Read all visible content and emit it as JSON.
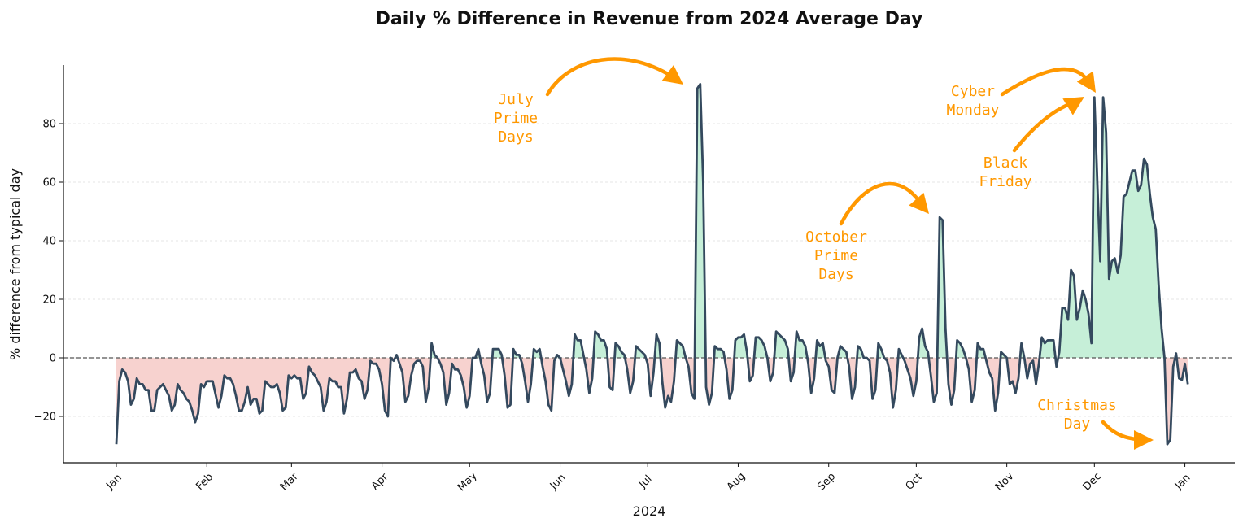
{
  "chart_data": {
    "type": "line",
    "title": "Daily % Difference in Revenue from 2024 Average Day",
    "xlabel": "2024",
    "ylabel": "% difference from typical day",
    "ylim": [
      -35,
      100
    ],
    "yticks": [
      -20,
      0,
      20,
      40,
      60,
      80
    ],
    "ytick_labels": [
      "−20",
      "0",
      "20",
      "40",
      "60",
      "80"
    ],
    "xticks": [
      "Jan",
      "Feb",
      "Mar",
      "Apr",
      "May",
      "Jun",
      "Jul",
      "Aug",
      "Sep",
      "Oct",
      "Nov",
      "Dec",
      "Jan"
    ],
    "grid": "y-dashed",
    "baseline": 0,
    "colors": {
      "line": "#34495e",
      "positive_fill": "#c6efd8",
      "negative_fill": "#f7d2cf",
      "annotation": "#ff9800",
      "baseline": "#555555",
      "grid": "#dddddd"
    },
    "anchors": [
      [
        0,
        -29.5
      ],
      [
        1,
        -8
      ],
      [
        2,
        -4
      ],
      [
        3,
        -5
      ],
      [
        4,
        -8
      ],
      [
        5,
        -16
      ],
      [
        6,
        -14
      ],
      [
        7,
        -7
      ],
      [
        8,
        -9
      ],
      [
        9,
        -9
      ],
      [
        10,
        -11
      ],
      [
        11,
        -11
      ],
      [
        12,
        -18
      ],
      [
        13,
        -18
      ],
      [
        14,
        -11
      ],
      [
        15,
        -10
      ],
      [
        16,
        -9
      ],
      [
        17,
        -11
      ],
      [
        18,
        -13
      ],
      [
        19,
        -18
      ],
      [
        20,
        -16
      ],
      [
        21,
        -9
      ],
      [
        22,
        -11
      ],
      [
        23,
        -12
      ],
      [
        24,
        -14
      ],
      [
        25,
        -15
      ],
      [
        26,
        -18
      ],
      [
        27,
        -22
      ],
      [
        28,
        -19
      ],
      [
        29,
        -9
      ],
      [
        30,
        -10
      ],
      [
        31,
        -8
      ],
      [
        32,
        -8
      ],
      [
        33,
        -8
      ],
      [
        35,
        -17
      ],
      [
        36,
        -13
      ],
      [
        37,
        -6
      ],
      [
        38,
        -7
      ],
      [
        39,
        -7
      ],
      [
        40,
        -9
      ],
      [
        41,
        -13
      ],
      [
        42,
        -18
      ],
      [
        43,
        -18
      ],
      [
        44,
        -15
      ],
      [
        45,
        -10
      ],
      [
        46,
        -16
      ],
      [
        47,
        -14
      ],
      [
        48,
        -14
      ],
      [
        49,
        -19
      ],
      [
        50,
        -18
      ],
      [
        51,
        -8
      ],
      [
        52,
        -9
      ],
      [
        53,
        -10
      ],
      [
        54,
        -10
      ],
      [
        55,
        -9
      ],
      [
        56,
        -12
      ],
      [
        57,
        -18
      ],
      [
        58,
        -17
      ],
      [
        59,
        -6
      ],
      [
        60,
        -7
      ],
      [
        61,
        -6
      ],
      [
        62,
        -7
      ],
      [
        63,
        -7
      ],
      [
        64,
        -14
      ],
      [
        65,
        -12
      ],
      [
        66,
        -3
      ],
      [
        67,
        -5
      ],
      [
        68,
        -6
      ],
      [
        69,
        -8
      ],
      [
        70,
        -10
      ],
      [
        71,
        -18
      ],
      [
        72,
        -15
      ],
      [
        73,
        -7
      ],
      [
        74,
        -8
      ],
      [
        75,
        -8
      ],
      [
        76,
        -10
      ],
      [
        77,
        -10
      ],
      [
        78,
        -19
      ],
      [
        79,
        -14
      ],
      [
        80,
        -5
      ],
      [
        81,
        -5
      ],
      [
        82,
        -4
      ],
      [
        83,
        -7
      ],
      [
        84,
        -8
      ],
      [
        85,
        -14
      ],
      [
        86,
        -11
      ],
      [
        87,
        -1
      ],
      [
        88,
        -2
      ],
      [
        89,
        -2
      ],
      [
        90,
        -4
      ],
      [
        91,
        -9
      ],
      [
        92,
        -18
      ],
      [
        93,
        -20
      ],
      [
        94,
        0
      ],
      [
        95,
        -1
      ],
      [
        96,
        1
      ],
      [
        97,
        -2
      ],
      [
        98,
        -5
      ],
      [
        99,
        -15
      ],
      [
        100,
        -13
      ],
      [
        101,
        -6
      ],
      [
        102,
        -2
      ],
      [
        103,
        -1
      ],
      [
        104,
        -1
      ],
      [
        105,
        -3
      ],
      [
        106,
        -15
      ],
      [
        107,
        -10
      ],
      [
        108,
        5
      ],
      [
        109,
        1
      ],
      [
        110,
        0
      ],
      [
        111,
        -2
      ],
      [
        112,
        -5
      ],
      [
        113,
        -16
      ],
      [
        114,
        -12
      ],
      [
        115,
        -2
      ],
      [
        116,
        -4
      ],
      [
        117,
        -4
      ],
      [
        118,
        -6
      ],
      [
        119,
        -10
      ],
      [
        120,
        -17
      ],
      [
        121,
        -13
      ],
      [
        122,
        0
      ],
      [
        123,
        0
      ],
      [
        124,
        3
      ],
      [
        125,
        -2
      ],
      [
        126,
        -6
      ],
      [
        127,
        -15
      ],
      [
        128,
        -12
      ],
      [
        129,
        3
      ],
      [
        130,
        3
      ],
      [
        131,
        3
      ],
      [
        132,
        1
      ],
      [
        133,
        -6
      ],
      [
        134,
        -17
      ],
      [
        135,
        -16
      ],
      [
        136,
        3
      ],
      [
        137,
        1
      ],
      [
        138,
        1
      ],
      [
        139,
        -2
      ],
      [
        140,
        -8
      ],
      [
        141,
        -15
      ],
      [
        142,
        -9
      ],
      [
        143,
        3
      ],
      [
        144,
        2
      ],
      [
        145,
        3
      ],
      [
        146,
        -3
      ],
      [
        147,
        -8
      ],
      [
        148,
        -16
      ],
      [
        149,
        -18
      ],
      [
        150,
        -1
      ],
      [
        151,
        1
      ],
      [
        152,
        0
      ],
      [
        153,
        -4
      ],
      [
        154,
        -8
      ],
      [
        155,
        -13
      ],
      [
        156,
        -9
      ],
      [
        157,
        8
      ],
      [
        158,
        6
      ],
      [
        159,
        6
      ],
      [
        160,
        1
      ],
      [
        161,
        -4
      ],
      [
        162,
        -12
      ],
      [
        163,
        -7
      ],
      [
        164,
        9
      ],
      [
        165,
        8
      ],
      [
        166,
        6
      ],
      [
        167,
        6
      ],
      [
        168,
        3
      ],
      [
        169,
        -10
      ],
      [
        170,
        -11
      ],
      [
        171,
        5
      ],
      [
        172,
        4
      ],
      [
        173,
        2
      ],
      [
        174,
        1
      ],
      [
        175,
        -4
      ],
      [
        176,
        -12
      ],
      [
        177,
        -8
      ],
      [
        178,
        4
      ],
      [
        179,
        3
      ],
      [
        180,
        2
      ],
      [
        181,
        1
      ],
      [
        182,
        -2
      ],
      [
        183,
        -13
      ],
      [
        184,
        -5
      ],
      [
        185,
        8
      ],
      [
        186,
        5
      ],
      [
        187,
        -8
      ],
      [
        188,
        -17
      ],
      [
        189,
        -13
      ],
      [
        190,
        -15
      ],
      [
        191,
        -8
      ],
      [
        192,
        6
      ],
      [
        193,
        5
      ],
      [
        194,
        4
      ],
      [
        195,
        0
      ],
      [
        196,
        -3
      ],
      [
        197,
        -12
      ],
      [
        198,
        -14
      ],
      [
        199,
        92
      ],
      [
        200,
        93.5
      ],
      [
        201,
        60
      ],
      [
        202,
        -10
      ],
      [
        203,
        -16
      ],
      [
        204,
        -12
      ],
      [
        205,
        4
      ],
      [
        206,
        3
      ],
      [
        207,
        3
      ],
      [
        208,
        2
      ],
      [
        209,
        -4
      ],
      [
        210,
        -14
      ],
      [
        211,
        -11
      ],
      [
        212,
        6
      ],
      [
        213,
        7
      ],
      [
        214,
        7
      ],
      [
        215,
        8
      ],
      [
        216,
        2
      ],
      [
        217,
        -8
      ],
      [
        218,
        -6
      ],
      [
        219,
        7
      ],
      [
        220,
        7
      ],
      [
        221,
        6
      ],
      [
        222,
        4
      ],
      [
        223,
        0
      ],
      [
        224,
        -8
      ],
      [
        225,
        -5
      ],
      [
        226,
        9
      ],
      [
        227,
        8
      ],
      [
        228,
        7
      ],
      [
        229,
        6
      ],
      [
        230,
        3
      ],
      [
        231,
        -8
      ],
      [
        232,
        -5
      ],
      [
        233,
        9
      ],
      [
        234,
        6
      ],
      [
        235,
        6
      ],
      [
        236,
        4
      ],
      [
        237,
        -2
      ],
      [
        238,
        -12
      ],
      [
        239,
        -7
      ],
      [
        240,
        6
      ],
      [
        241,
        4
      ],
      [
        242,
        5
      ],
      [
        243,
        -1
      ],
      [
        244,
        -3
      ],
      [
        245,
        -11
      ],
      [
        246,
        -12
      ],
      [
        247,
        0
      ],
      [
        248,
        4
      ],
      [
        249,
        3
      ],
      [
        250,
        2
      ],
      [
        251,
        -3
      ],
      [
        252,
        -14
      ],
      [
        253,
        -10
      ],
      [
        254,
        4
      ],
      [
        255,
        3
      ],
      [
        256,
        0
      ],
      [
        257,
        0
      ],
      [
        258,
        -1
      ],
      [
        259,
        -14
      ],
      [
        260,
        -11
      ],
      [
        261,
        5
      ],
      [
        262,
        3
      ],
      [
        263,
        0
      ],
      [
        264,
        -1
      ],
      [
        265,
        -5
      ],
      [
        266,
        -17
      ],
      [
        267,
        -11
      ],
      [
        268,
        3
      ],
      [
        269,
        1
      ],
      [
        270,
        -1
      ],
      [
        271,
        -4
      ],
      [
        272,
        -7
      ],
      [
        273,
        -13
      ],
      [
        274,
        -8
      ],
      [
        275,
        7
      ],
      [
        276,
        10
      ],
      [
        277,
        4
      ],
      [
        278,
        2
      ],
      [
        279,
        -6
      ],
      [
        280,
        -15
      ],
      [
        281,
        -12
      ],
      [
        282,
        48
      ],
      [
        283,
        47
      ],
      [
        284,
        10
      ],
      [
        285,
        -9
      ],
      [
        286,
        -16
      ],
      [
        287,
        -11
      ],
      [
        288,
        6
      ],
      [
        289,
        5
      ],
      [
        290,
        3
      ],
      [
        291,
        0
      ],
      [
        292,
        -4
      ],
      [
        293,
        -15
      ],
      [
        294,
        -11
      ],
      [
        295,
        5
      ],
      [
        296,
        3
      ],
      [
        297,
        3
      ],
      [
        298,
        -1
      ],
      [
        299,
        -5
      ],
      [
        300,
        -7
      ],
      [
        301,
        -18
      ],
      [
        302,
        -12
      ],
      [
        303,
        2
      ],
      [
        304,
        1
      ],
      [
        305,
        0
      ],
      [
        306,
        -9
      ],
      [
        307,
        -8
      ],
      [
        308,
        -12
      ],
      [
        309,
        -7
      ],
      [
        310,
        5
      ],
      [
        311,
        0
      ],
      [
        312,
        -7
      ],
      [
        313,
        -2
      ],
      [
        314,
        -1
      ],
      [
        315,
        -9
      ],
      [
        316,
        -2
      ],
      [
        317,
        7
      ],
      [
        318,
        5
      ],
      [
        319,
        6
      ],
      [
        320,
        6
      ],
      [
        321,
        6
      ],
      [
        322,
        -3
      ],
      [
        323,
        2
      ],
      [
        324,
        17
      ],
      [
        325,
        17
      ],
      [
        326,
        13
      ],
      [
        327,
        30
      ],
      [
        328,
        28
      ],
      [
        329,
        13
      ],
      [
        330,
        17
      ],
      [
        331,
        23
      ],
      [
        332,
        20
      ],
      [
        333,
        15
      ],
      [
        334,
        5
      ],
      [
        335,
        89
      ],
      [
        336,
        60
      ],
      [
        337,
        33
      ],
      [
        338,
        89
      ],
      [
        339,
        77
      ],
      [
        340,
        27
      ],
      [
        341,
        33
      ],
      [
        342,
        34
      ],
      [
        343,
        29
      ],
      [
        344,
        35
      ],
      [
        345,
        55
      ],
      [
        346,
        56
      ],
      [
        347,
        60
      ],
      [
        348,
        64
      ],
      [
        349,
        64
      ],
      [
        350,
        57
      ],
      [
        351,
        59
      ],
      [
        352,
        68
      ],
      [
        353,
        66
      ],
      [
        354,
        56
      ],
      [
        355,
        48
      ],
      [
        356,
        44
      ],
      [
        357,
        25
      ],
      [
        358,
        10
      ],
      [
        359,
        0
      ],
      [
        360,
        -29.5
      ],
      [
        361,
        -28
      ],
      [
        362,
        -3
      ],
      [
        363,
        1.5
      ],
      [
        364,
        -7
      ],
      [
        365,
        -7.5
      ],
      [
        366,
        -2
      ],
      [
        367,
        -9
      ]
    ],
    "annotations": [
      {
        "label": "July\nPrime\nDays"
      },
      {
        "label": "October\nPrime\nDays"
      },
      {
        "label": "Cyber\nMonday"
      },
      {
        "label": "Black\nFriday"
      },
      {
        "label": "Christmas\nDay"
      }
    ]
  }
}
